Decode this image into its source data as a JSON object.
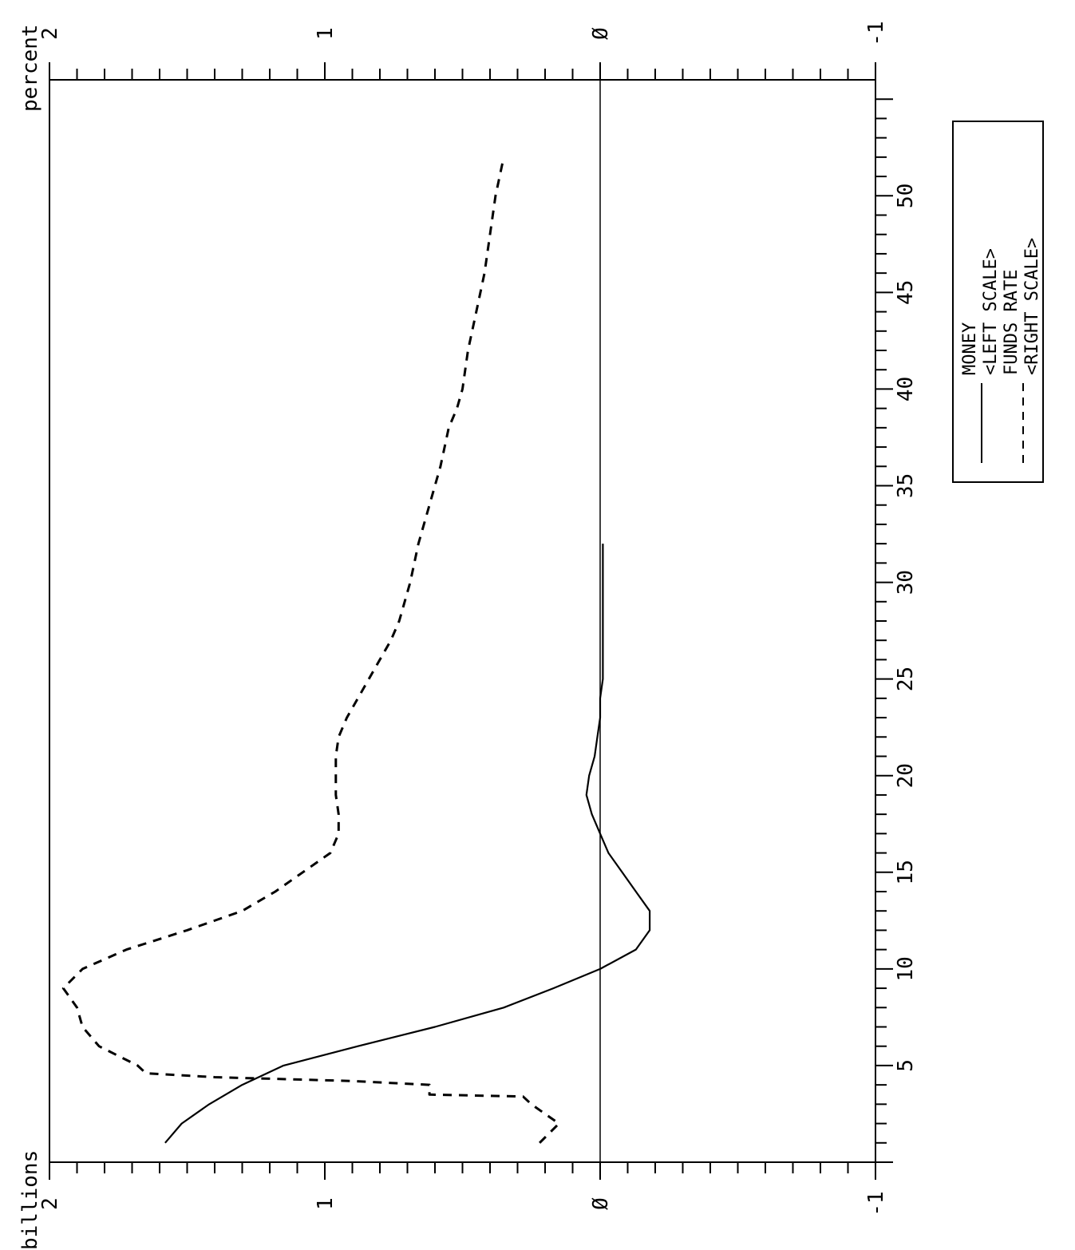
{
  "chart_data": {
    "type": "line",
    "orientation": "rotated-90-clockwise",
    "title": "",
    "xlabel": "",
    "xlim": [
      0,
      56
    ],
    "x_ticks": [
      "5",
      "10",
      "15",
      "20",
      "25",
      "30",
      "35",
      "40",
      "45",
      "50"
    ],
    "left_axis": {
      "label": "billions",
      "lim": [
        -1,
        2
      ],
      "ticks": [
        "2",
        "1",
        "Ø",
        "-1"
      ]
    },
    "right_axis": {
      "label": "percent",
      "lim": [
        -1,
        2
      ],
      "ticks": [
        "2",
        "1",
        "Ø",
        "-1"
      ]
    },
    "zero_line": true,
    "grid": false,
    "legend_position": "right",
    "series": [
      {
        "axis": "left",
        "style": "solid",
        "x": [
          1,
          2,
          3,
          4,
          5,
          6,
          7,
          8,
          9,
          10,
          11,
          12,
          13,
          14,
          15,
          16,
          17,
          18,
          19,
          20,
          21,
          22,
          23,
          24,
          25,
          26,
          28,
          30,
          32
        ],
        "y": [
          1.58,
          1.52,
          1.42,
          1.3,
          1.15,
          0.88,
          0.6,
          0.35,
          0.17,
          0.0,
          -0.13,
          -0.18,
          -0.18,
          -0.13,
          -0.08,
          -0.03,
          0.0,
          0.03,
          0.05,
          0.04,
          0.02,
          0.01,
          0.0,
          0.0,
          -0.01,
          -0.01,
          -0.01,
          -0.01,
          -0.01
        ]
      },
      {
        "axis": "right",
        "style": "dashed",
        "x": [
          1,
          2,
          3,
          3.4,
          3.5,
          4,
          4.2,
          4.4,
          4.6,
          5,
          6,
          7,
          8,
          9,
          10,
          11,
          12,
          13,
          14,
          15,
          16,
          17,
          18,
          19,
          20,
          21,
          22,
          23,
          24,
          25,
          26,
          27,
          28,
          29,
          30,
          32,
          34,
          35,
          36,
          38,
          39,
          40,
          42,
          44,
          46,
          48,
          50,
          52
        ],
        "y": [
          0.22,
          0.15,
          0.25,
          0.28,
          0.62,
          0.62,
          0.9,
          1.4,
          1.65,
          1.68,
          1.82,
          1.88,
          1.9,
          1.95,
          1.88,
          1.72,
          1.5,
          1.3,
          1.18,
          1.08,
          0.98,
          0.95,
          0.95,
          0.96,
          0.96,
          0.96,
          0.95,
          0.92,
          0.88,
          0.84,
          0.8,
          0.76,
          0.73,
          0.71,
          0.69,
          0.66,
          0.62,
          0.6,
          0.58,
          0.55,
          0.52,
          0.5,
          0.48,
          0.45,
          0.42,
          0.4,
          0.38,
          0.35
        ]
      }
    ]
  },
  "legend": {
    "money_label": "MONEY",
    "money_scale": "<LEFT SCALE>",
    "funds_label": "FUNDS RATE",
    "funds_scale": "<RIGHT SCALE>"
  }
}
